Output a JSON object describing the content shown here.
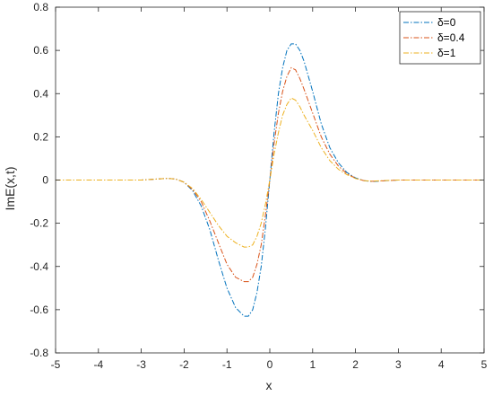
{
  "chart_data": {
    "type": "line",
    "xlabel": "x",
    "ylabel": "ImE(x,t)",
    "xlim": [
      -5,
      5
    ],
    "ylim": [
      -0.8,
      0.8
    ],
    "xticks": [
      -5,
      -4,
      -3,
      -2,
      -1,
      0,
      1,
      2,
      3,
      4,
      5
    ],
    "yticks": [
      -0.8,
      -0.6,
      -0.4,
      -0.2,
      0,
      0.2,
      0.4,
      0.6,
      0.8
    ],
    "grid": false,
    "legend_position": "top-right",
    "series": [
      {
        "name": "δ=0",
        "color": "#0072BD",
        "line_style": "dash-dot",
        "x": [
          -5,
          -4,
          -3,
          -2.6,
          -2.4,
          -2.2,
          -2.0,
          -1.8,
          -1.6,
          -1.4,
          -1.2,
          -1.0,
          -0.8,
          -0.6,
          -0.5,
          -0.4,
          -0.3,
          -0.2,
          -0.1,
          0,
          0.1,
          0.2,
          0.3,
          0.4,
          0.5,
          0.6,
          0.7,
          0.8,
          1.0,
          1.2,
          1.4,
          1.6,
          1.8,
          2.0,
          2.2,
          2.4,
          2.6,
          3,
          4,
          5
        ],
        "y": [
          0,
          0,
          0,
          0.005,
          0.008,
          0.005,
          -0.01,
          -0.05,
          -0.12,
          -0.23,
          -0.37,
          -0.5,
          -0.59,
          -0.63,
          -0.63,
          -0.6,
          -0.52,
          -0.4,
          -0.22,
          0,
          0.22,
          0.4,
          0.52,
          0.6,
          0.63,
          0.63,
          0.6,
          0.55,
          0.41,
          0.26,
          0.15,
          0.08,
          0.035,
          0.01,
          -0.003,
          -0.007,
          -0.004,
          0,
          0,
          0
        ]
      },
      {
        "name": "δ=0.4",
        "color": "#D95319",
        "line_style": "dash-dot",
        "x": [
          -5,
          -4,
          -3,
          -2.6,
          -2.4,
          -2.2,
          -2.0,
          -1.8,
          -1.6,
          -1.4,
          -1.2,
          -1.0,
          -0.8,
          -0.6,
          -0.5,
          -0.4,
          -0.3,
          -0.2,
          -0.1,
          0,
          0.1,
          0.2,
          0.3,
          0.4,
          0.5,
          0.6,
          0.7,
          0.8,
          1.0,
          1.2,
          1.4,
          1.6,
          1.8,
          2.0,
          2.2,
          2.4,
          2.6,
          3,
          4,
          5
        ],
        "y": [
          0,
          0,
          0,
          0.005,
          0.008,
          0.005,
          -0.01,
          -0.045,
          -0.1,
          -0.19,
          -0.29,
          -0.39,
          -0.45,
          -0.47,
          -0.47,
          -0.45,
          -0.39,
          -0.3,
          -0.16,
          0,
          0.17,
          0.31,
          0.41,
          0.48,
          0.52,
          0.51,
          0.47,
          0.42,
          0.31,
          0.2,
          0.12,
          0.065,
          0.03,
          0.008,
          -0.003,
          -0.006,
          -0.004,
          0,
          0,
          0
        ]
      },
      {
        "name": "δ=1",
        "color": "#EDB120",
        "line_style": "dash-dot",
        "x": [
          -5,
          -4,
          -3,
          -2.6,
          -2.4,
          -2.2,
          -2.0,
          -1.8,
          -1.6,
          -1.4,
          -1.2,
          -1.0,
          -0.8,
          -0.6,
          -0.5,
          -0.4,
          -0.3,
          -0.2,
          -0.1,
          0,
          0.1,
          0.2,
          0.3,
          0.4,
          0.5,
          0.6,
          0.7,
          0.8,
          1.0,
          1.2,
          1.4,
          1.6,
          1.8,
          2.0,
          2.2,
          2.4,
          2.6,
          3,
          4,
          5
        ],
        "y": [
          0,
          0,
          0,
          0.005,
          0.008,
          0.005,
          -0.01,
          -0.04,
          -0.09,
          -0.15,
          -0.21,
          -0.26,
          -0.29,
          -0.31,
          -0.31,
          -0.3,
          -0.26,
          -0.2,
          -0.11,
          0,
          0.12,
          0.22,
          0.3,
          0.35,
          0.38,
          0.37,
          0.34,
          0.3,
          0.23,
          0.15,
          0.09,
          0.05,
          0.025,
          0.007,
          -0.003,
          -0.005,
          -0.003,
          0,
          0,
          0
        ]
      }
    ]
  }
}
